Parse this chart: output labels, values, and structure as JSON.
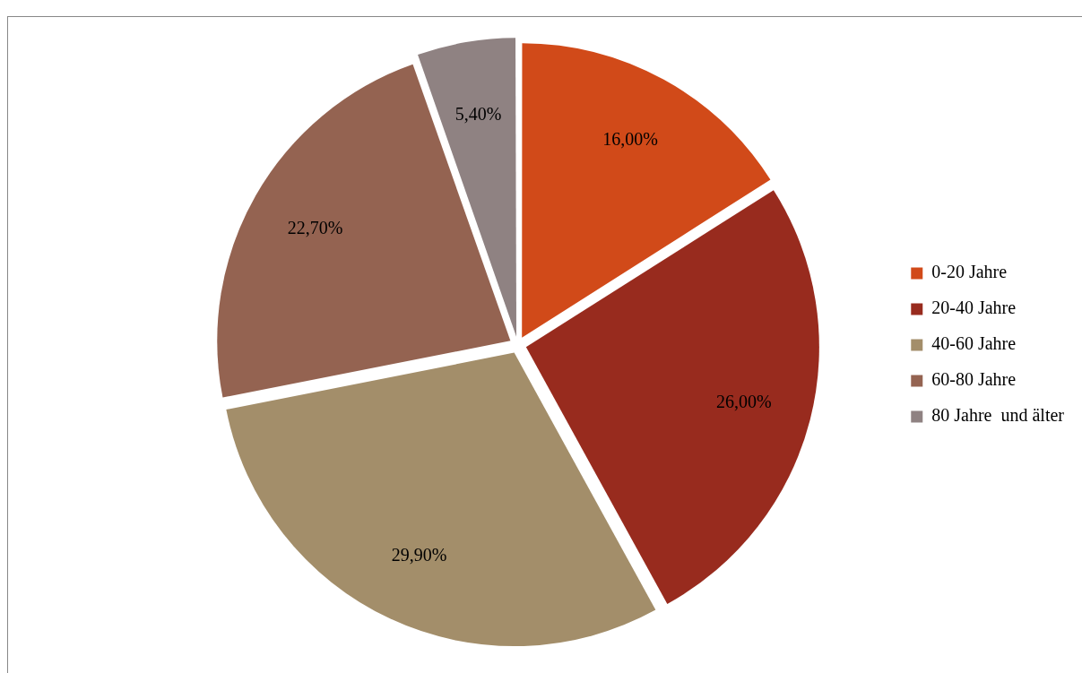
{
  "chart_data": {
    "type": "pie",
    "categories": [
      "0-20 Jahre",
      "20-40 Jahre",
      "40-60 Jahre",
      "60-80 Jahre",
      "80 Jahre  und älter"
    ],
    "values": [
      16.0,
      26.0,
      29.9,
      22.7,
      5.4
    ],
    "colors": [
      "#d14a19",
      "#982b1e",
      "#a38e6a",
      "#946351",
      "#8f8282"
    ],
    "value_labels": [
      "16,00%",
      "26,00%",
      "29,90%",
      "22,70%",
      "5,40%"
    ],
    "legend": "right"
  }
}
